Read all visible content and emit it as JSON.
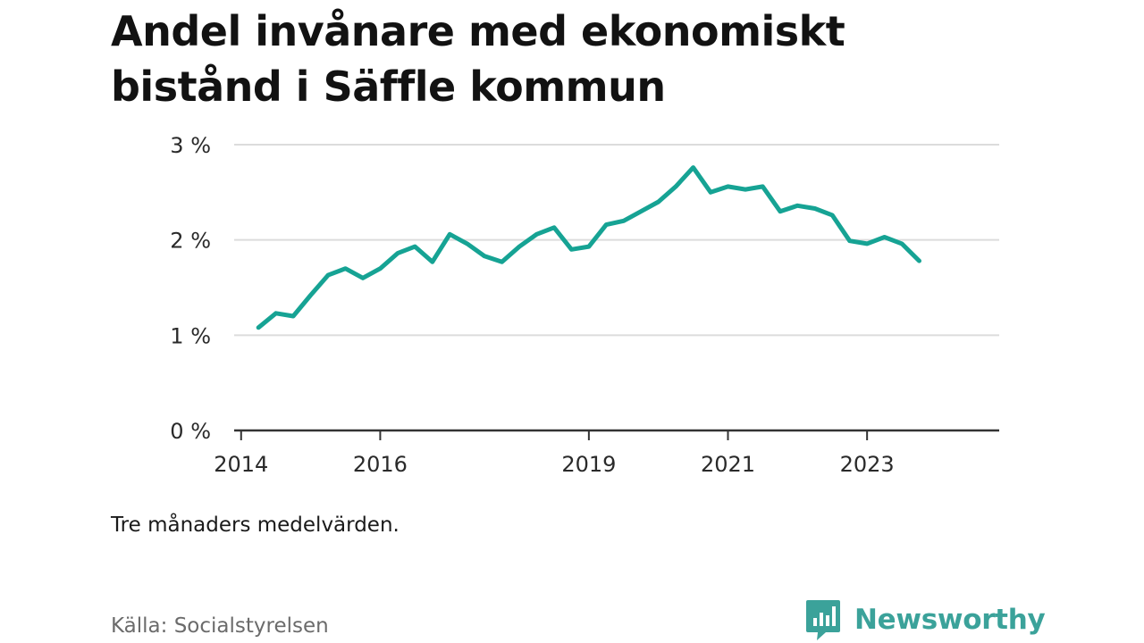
{
  "title_lines": [
    "Andel invånare med ekonomiskt",
    "bistånd i Säffle kommun"
  ],
  "note": "Tre månaders medelvärden.",
  "source": "Källa: Socialstyrelsen",
  "brand": {
    "name": "Newsworthy",
    "color": "#3ba29a",
    "icon": "bar-chart-speech-bubble-icon"
  },
  "chart_data": {
    "type": "line",
    "title": "Andel invånare med ekonomiskt bistånd i Säffle kommun",
    "xlabel": "",
    "ylabel": "",
    "xlim": [
      2013.9,
      2024.9
    ],
    "ylim": [
      0,
      3
    ],
    "y_ticks": [
      0,
      1,
      2,
      3
    ],
    "y_tick_labels": [
      "0 %",
      "1 %",
      "2 %",
      "3 %"
    ],
    "x_ticks": [
      2014,
      2016,
      2019,
      2021,
      2023
    ],
    "x_tick_labels": [
      "2014",
      "2016",
      "2019",
      "2021",
      "2023"
    ],
    "grid": "horizontal",
    "line_color": "#16a394",
    "series": [
      {
        "x": [
          2014.25,
          2014.5,
          2014.75,
          2015.0,
          2015.25,
          2015.5,
          2015.75,
          2016.0,
          2016.25,
          2016.5,
          2016.75,
          2017.0,
          2017.25,
          2017.5,
          2017.75,
          2018.0,
          2018.25,
          2018.5,
          2018.75,
          2019.0,
          2019.25,
          2019.5,
          2019.75,
          2020.0,
          2020.25,
          2020.5,
          2020.75,
          2021.0,
          2021.25,
          2021.5,
          2021.75,
          2022.0,
          2022.25,
          2022.5,
          2022.75,
          2023.0,
          2023.25,
          2023.5,
          2023.75
        ],
        "values": [
          1.08,
          1.23,
          1.2,
          1.42,
          1.63,
          1.7,
          1.6,
          1.7,
          1.86,
          1.93,
          1.77,
          2.06,
          1.96,
          1.83,
          1.77,
          1.93,
          2.06,
          2.13,
          1.9,
          1.93,
          2.16,
          2.2,
          2.3,
          2.4,
          2.56,
          2.76,
          2.5,
          2.56,
          2.53,
          2.56,
          2.3,
          2.36,
          2.33,
          2.26,
          1.99,
          1.96,
          2.03,
          1.96,
          1.78
        ]
      }
    ]
  }
}
